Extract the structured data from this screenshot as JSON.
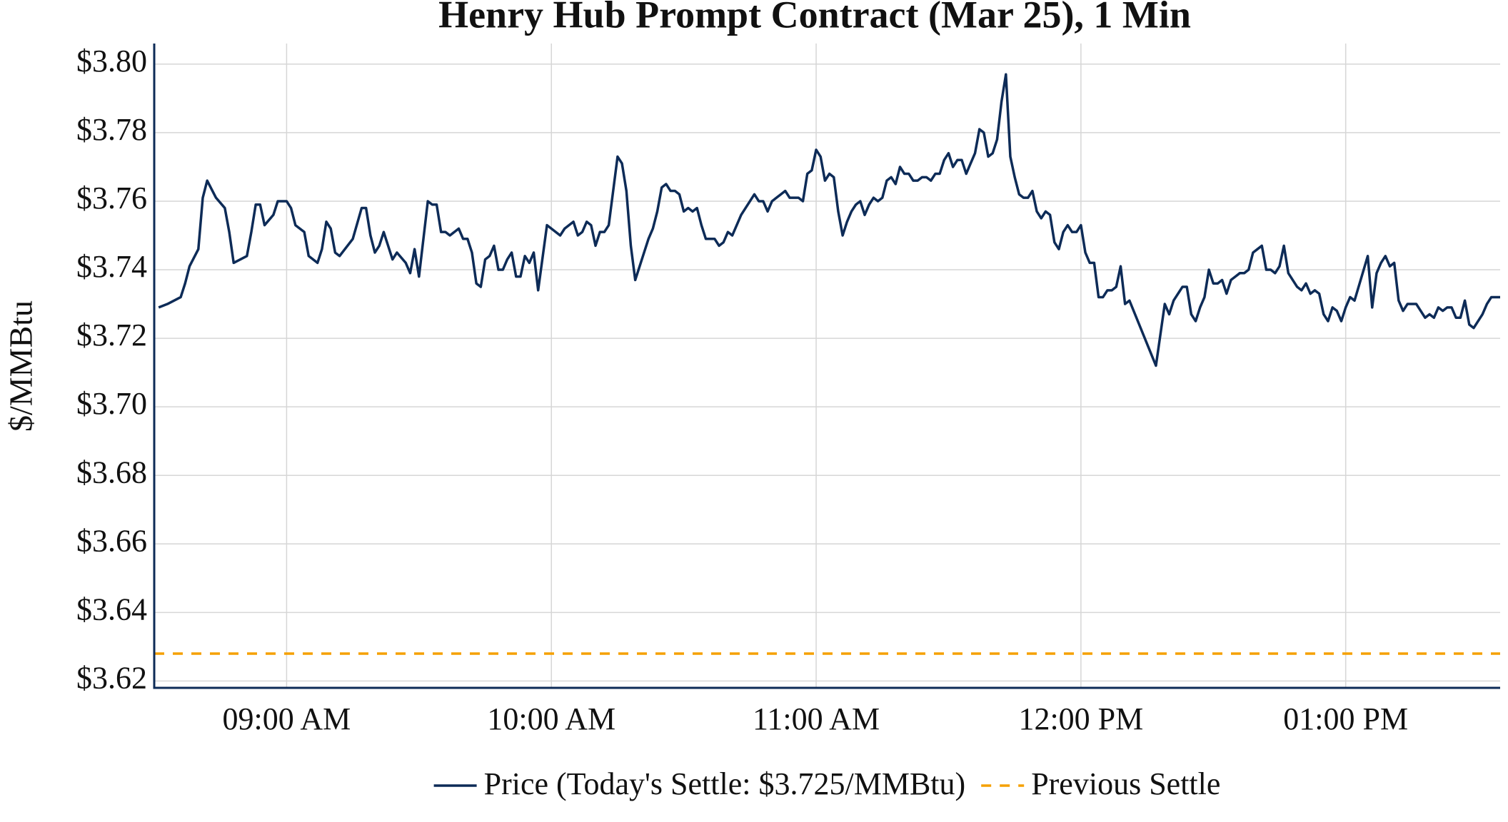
{
  "chart_data": {
    "type": "line",
    "title": "Henry Hub Prompt Contract (Mar 25), 1 Min",
    "y_label": "$/MMBtu",
    "x": [
      "08:31 AM",
      "08:33 AM",
      "08:36 AM",
      "08:37 AM",
      "08:38 AM",
      "08:40 AM",
      "08:41 AM",
      "08:42 AM",
      "08:44 AM",
      "08:46 AM",
      "08:47 AM",
      "08:48 AM",
      "08:51 AM",
      "08:52 AM",
      "08:53 AM",
      "08:54 AM",
      "08:55 AM",
      "08:57 AM",
      "08:58 AM",
      "09:00 AM",
      "09:01 AM",
      "09:02 AM",
      "09:04 AM",
      "09:05 AM",
      "09:07 AM",
      "09:08 AM",
      "09:09 AM",
      "09:10 AM",
      "09:11 AM",
      "09:12 AM",
      "09:15 AM",
      "09:17 AM",
      "09:18 AM",
      "09:19 AM",
      "09:20 AM",
      "09:21 AM",
      "09:22 AM",
      "09:23 AM",
      "09:24 AM",
      "09:25 AM",
      "09:27 AM",
      "09:28 AM",
      "09:29 AM",
      "09:30 AM",
      "09:31 AM",
      "09:32 AM",
      "09:33 AM",
      "09:34 AM",
      "09:35 AM",
      "09:36 AM",
      "09:37 AM",
      "09:39 AM",
      "09:40 AM",
      "09:41 AM",
      "09:42 AM",
      "09:43 AM",
      "09:44 AM",
      "09:45 AM",
      "09:46 AM",
      "09:47 AM",
      "09:48 AM",
      "09:49 AM",
      "09:50 AM",
      "09:51 AM",
      "09:52 AM",
      "09:53 AM",
      "09:54 AM",
      "09:55 AM",
      "09:56 AM",
      "09:57 AM",
      "09:59 AM",
      "10:00 AM",
      "10:02 AM",
      "10:03 AM",
      "10:05 AM",
      "10:06 AM",
      "10:07 AM",
      "10:08 AM",
      "10:09 AM",
      "10:10 AM",
      "10:11 AM",
      "10:12 AM",
      "10:13 AM",
      "10:14 AM",
      "10:15 AM",
      "10:16 AM",
      "10:17 AM",
      "10:18 AM",
      "10:19 AM",
      "10:20 AM",
      "10:21 AM",
      "10:22 AM",
      "10:23 AM",
      "10:24 AM",
      "10:25 AM",
      "10:26 AM",
      "10:27 AM",
      "10:28 AM",
      "10:29 AM",
      "10:30 AM",
      "10:31 AM",
      "10:32 AM",
      "10:33 AM",
      "10:34 AM",
      "10:35 AM",
      "10:37 AM",
      "10:38 AM",
      "10:39 AM",
      "10:40 AM",
      "10:41 AM",
      "10:42 AM",
      "10:43 AM",
      "10:44 AM",
      "10:45 AM",
      "10:46 AM",
      "10:47 AM",
      "10:48 AM",
      "10:49 AM",
      "10:50 AM",
      "10:51 AM",
      "10:52 AM",
      "10:53 AM",
      "10:54 AM",
      "10:56 AM",
      "10:57 AM",
      "10:58 AM",
      "10:59 AM",
      "11:00 AM",
      "11:01 AM",
      "11:02 AM",
      "11:03 AM",
      "11:04 AM",
      "11:05 AM",
      "11:06 AM",
      "11:07 AM",
      "11:08 AM",
      "11:09 AM",
      "11:10 AM",
      "11:11 AM",
      "11:12 AM",
      "11:13 AM",
      "11:14 AM",
      "11:15 AM",
      "11:16 AM",
      "11:17 AM",
      "11:18 AM",
      "11:19 AM",
      "11:20 AM",
      "11:21 AM",
      "11:22 AM",
      "11:23 AM",
      "11:24 AM",
      "11:25 AM",
      "11:26 AM",
      "11:27 AM",
      "11:28 AM",
      "11:29 AM",
      "11:30 AM",
      "11:31 AM",
      "11:32 AM",
      "11:33 AM",
      "11:34 AM",
      "11:35 AM",
      "11:36 AM",
      "11:37 AM",
      "11:38 AM",
      "11:39 AM",
      "11:40 AM",
      "11:41 AM",
      "11:42 AM",
      "11:43 AM",
      "11:44 AM",
      "11:45 AM",
      "11:46 AM",
      "11:47 AM",
      "11:48 AM",
      "11:49 AM",
      "11:50 AM",
      "11:51 AM",
      "11:52 AM",
      "11:53 AM",
      "11:54 AM",
      "11:55 AM",
      "11:56 AM",
      "11:57 AM",
      "11:58 AM",
      "11:59 AM",
      "12:00 PM",
      "12:01 PM",
      "12:02 PM",
      "12:03 PM",
      "12:04 PM",
      "12:05 PM",
      "12:06 PM",
      "12:07 PM",
      "12:08 PM",
      "12:09 PM",
      "12:10 PM",
      "12:11 PM",
      "12:17 PM",
      "12:18 PM",
      "12:19 PM",
      "12:20 PM",
      "12:21 PM",
      "12:23 PM",
      "12:24 PM",
      "12:25 PM",
      "12:26 PM",
      "12:27 PM",
      "12:28 PM",
      "12:29 PM",
      "12:30 PM",
      "12:31 PM",
      "12:32 PM",
      "12:33 PM",
      "12:34 PM",
      "12:35 PM",
      "12:36 PM",
      "12:37 PM",
      "12:38 PM",
      "12:39 PM",
      "12:40 PM",
      "12:41 PM",
      "12:42 PM",
      "12:43 PM",
      "12:44 PM",
      "12:45 PM",
      "12:46 PM",
      "12:47 PM",
      "12:48 PM",
      "12:49 PM",
      "12:50 PM",
      "12:51 PM",
      "12:52 PM",
      "12:53 PM",
      "12:54 PM",
      "12:55 PM",
      "12:56 PM",
      "12:57 PM",
      "12:58 PM",
      "12:59 PM",
      "01:00 PM",
      "01:01 PM",
      "01:02 PM",
      "01:05 PM",
      "01:06 PM",
      "01:07 PM",
      "01:08 PM",
      "01:09 PM",
      "01:10 PM",
      "01:11 PM",
      "01:12 PM",
      "01:13 PM",
      "01:14 PM",
      "01:16 PM",
      "01:17 PM",
      "01:18 PM",
      "01:19 PM",
      "01:20 PM",
      "01:21 PM",
      "01:22 PM",
      "01:23 PM",
      "01:24 PM",
      "01:25 PM",
      "01:26 PM",
      "01:27 PM",
      "01:28 PM",
      "01:29 PM",
      "01:30 PM",
      "01:31 PM",
      "01:32 PM",
      "01:33 PM",
      "01:35 PM"
    ],
    "series": [
      {
        "name": "Price (Today's Settle: $3.725/MMBtu)",
        "color": "#0d2b57",
        "values": [
          3.729,
          3.73,
          3.732,
          3.736,
          3.741,
          3.746,
          3.761,
          3.766,
          3.761,
          3.758,
          3.751,
          3.742,
          3.744,
          3.751,
          3.759,
          3.759,
          3.753,
          3.756,
          3.76,
          3.76,
          3.758,
          3.753,
          3.751,
          3.744,
          3.742,
          3.746,
          3.754,
          3.752,
          3.745,
          3.744,
          3.749,
          3.758,
          3.758,
          3.75,
          3.745,
          3.747,
          3.751,
          3.747,
          3.743,
          3.745,
          3.742,
          3.739,
          3.746,
          3.738,
          3.749,
          3.76,
          3.759,
          3.759,
          3.751,
          3.751,
          3.75,
          3.752,
          3.749,
          3.749,
          3.745,
          3.736,
          3.735,
          3.743,
          3.744,
          3.747,
          3.74,
          3.74,
          3.743,
          3.745,
          3.738,
          3.738,
          3.744,
          3.742,
          3.745,
          3.734,
          3.753,
          3.752,
          3.75,
          3.752,
          3.754,
          3.75,
          3.751,
          3.754,
          3.753,
          3.747,
          3.751,
          3.751,
          3.753,
          3.763,
          3.773,
          3.771,
          3.763,
          3.747,
          3.737,
          3.741,
          3.745,
          3.749,
          3.752,
          3.757,
          3.764,
          3.765,
          3.763,
          3.763,
          3.762,
          3.757,
          3.758,
          3.757,
          3.758,
          3.753,
          3.749,
          3.749,
          3.747,
          3.748,
          3.751,
          3.75,
          3.753,
          3.756,
          3.758,
          3.76,
          3.762,
          3.76,
          3.76,
          3.757,
          3.76,
          3.761,
          3.762,
          3.763,
          3.761,
          3.761,
          3.76,
          3.768,
          3.769,
          3.775,
          3.773,
          3.766,
          3.768,
          3.767,
          3.757,
          3.75,
          3.754,
          3.757,
          3.759,
          3.76,
          3.756,
          3.759,
          3.761,
          3.76,
          3.761,
          3.766,
          3.767,
          3.765,
          3.77,
          3.768,
          3.768,
          3.766,
          3.766,
          3.767,
          3.767,
          3.766,
          3.768,
          3.768,
          3.772,
          3.774,
          3.77,
          3.772,
          3.772,
          3.768,
          3.771,
          3.774,
          3.781,
          3.78,
          3.773,
          3.774,
          3.778,
          3.789,
          3.797,
          3.773,
          3.767,
          3.762,
          3.761,
          3.761,
          3.763,
          3.757,
          3.755,
          3.757,
          3.756,
          3.748,
          3.746,
          3.751,
          3.753,
          3.751,
          3.751,
          3.753,
          3.745,
          3.742,
          3.742,
          3.732,
          3.732,
          3.734,
          3.734,
          3.735,
          3.741,
          3.73,
          3.731,
          3.712,
          3.721,
          3.73,
          3.727,
          3.731,
          3.735,
          3.735,
          3.727,
          3.725,
          3.729,
          3.732,
          3.74,
          3.736,
          3.736,
          3.737,
          3.733,
          3.737,
          3.738,
          3.739,
          3.739,
          3.74,
          3.745,
          3.746,
          3.747,
          3.74,
          3.74,
          3.739,
          3.741,
          3.747,
          3.739,
          3.737,
          3.735,
          3.734,
          3.736,
          3.733,
          3.734,
          3.733,
          3.727,
          3.725,
          3.729,
          3.728,
          3.725,
          3.729,
          3.732,
          3.731,
          3.744,
          3.729,
          3.739,
          3.742,
          3.744,
          3.741,
          3.742,
          3.731,
          3.728,
          3.73,
          3.73,
          3.728,
          3.726,
          3.727,
          3.726,
          3.729,
          3.728,
          3.729,
          3.729,
          3.726,
          3.726,
          3.731,
          3.724,
          3.723,
          3.725,
          3.727,
          3.73,
          3.732,
          3.732
        ]
      }
    ],
    "reference_lines": [
      {
        "name": "Previous Settle",
        "value": 3.628,
        "color": "#f5a000",
        "dash": true
      }
    ],
    "xlim": [
      "08:30 AM",
      "01:35 PM"
    ],
    "xticks": [
      "09:00 AM",
      "10:00 AM",
      "11:00 AM",
      "12:00 PM",
      "01:00 PM"
    ],
    "ylim": [
      3.618,
      3.806
    ],
    "yticks": [
      {
        "value": 3.62,
        "label": "$3.62"
      },
      {
        "value": 3.64,
        "label": "$3.64"
      },
      {
        "value": 3.66,
        "label": "$3.66"
      },
      {
        "value": 3.68,
        "label": "$3.68"
      },
      {
        "value": 3.7,
        "label": "$3.70"
      },
      {
        "value": 3.72,
        "label": "$3.72"
      },
      {
        "value": 3.74,
        "label": "$3.74"
      },
      {
        "value": 3.76,
        "label": "$3.76"
      },
      {
        "value": 3.78,
        "label": "$3.78"
      },
      {
        "value": 3.8,
        "label": "$3.80"
      }
    ],
    "grid": true,
    "legend": "bottom"
  }
}
